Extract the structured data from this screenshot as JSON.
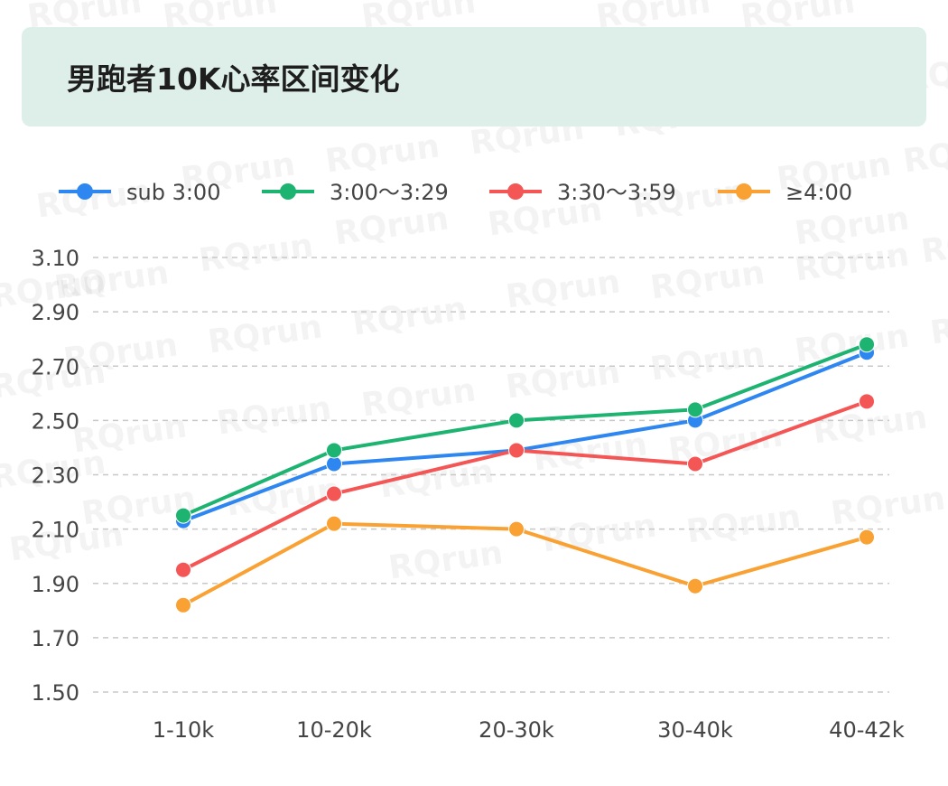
{
  "watermark": "RQrun",
  "chart_data": {
    "type": "line",
    "title": "男跑者10K心率区间变化",
    "xlabel": "",
    "ylabel": "",
    "categories": [
      "1-10k",
      "10-20k",
      "20-30k",
      "30-40k",
      "40-42k"
    ],
    "ylim": [
      1.5,
      3.1
    ],
    "yticks": [
      "1.50",
      "1.70",
      "1.90",
      "2.10",
      "2.30",
      "2.50",
      "2.70",
      "2.90",
      "3.10"
    ],
    "grid": true,
    "legend_position": "top",
    "series": [
      {
        "name": "sub 3:00",
        "color": "#2e86f0",
        "values": [
          2.13,
          2.34,
          2.39,
          2.5,
          2.75
        ]
      },
      {
        "name": "3:00～3:29",
        "color": "#1db371",
        "values": [
          2.15,
          2.39,
          2.5,
          2.54,
          2.78
        ]
      },
      {
        "name": "3:30～3:59",
        "color": "#f45656",
        "values": [
          1.95,
          2.23,
          2.39,
          2.34,
          2.57
        ]
      },
      {
        "name": "≥4:00",
        "color": "#f9a133",
        "values": [
          1.82,
          2.12,
          2.1,
          1.89,
          2.07
        ]
      }
    ]
  }
}
